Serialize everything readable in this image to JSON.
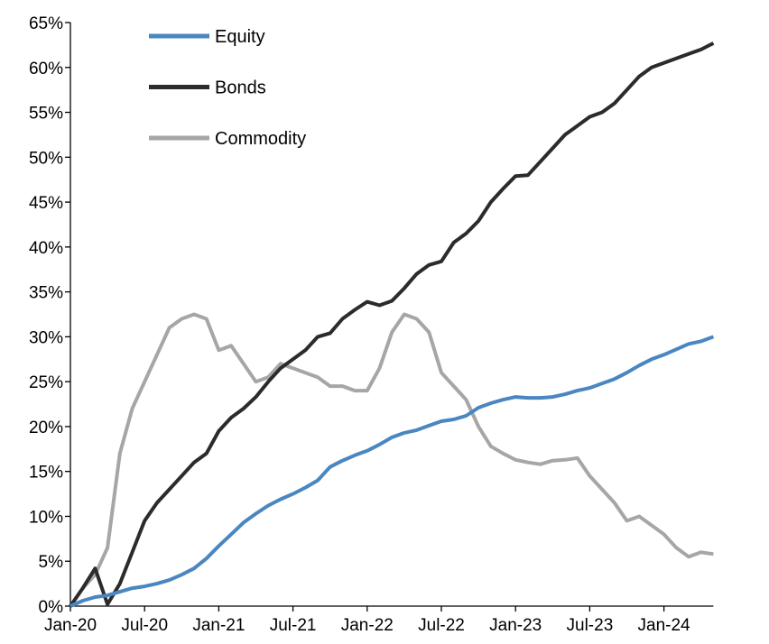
{
  "chart_data": {
    "type": "line",
    "title": "",
    "xlabel": "",
    "ylabel": "",
    "ylim": [
      0,
      65
    ],
    "yticks": [
      "0%",
      "5%",
      "10%",
      "15%",
      "20%",
      "25%",
      "30%",
      "35%",
      "40%",
      "45%",
      "50%",
      "55%",
      "60%",
      "65%"
    ],
    "xticks": [
      "Jan-20",
      "Jul-20",
      "Jan-21",
      "Jul-21",
      "Jan-22",
      "Jul-22",
      "Jan-23",
      "Jul-23",
      "Jan-24"
    ],
    "grid": false,
    "legend_position": "top-left",
    "x": [
      "2020-01",
      "2020-02",
      "2020-03",
      "2020-04",
      "2020-05",
      "2020-06",
      "2020-07",
      "2020-08",
      "2020-09",
      "2020-10",
      "2020-11",
      "2020-12",
      "2021-01",
      "2021-02",
      "2021-03",
      "2021-04",
      "2021-05",
      "2021-06",
      "2021-07",
      "2021-08",
      "2021-09",
      "2021-10",
      "2021-11",
      "2021-12",
      "2022-01",
      "2022-02",
      "2022-03",
      "2022-04",
      "2022-05",
      "2022-06",
      "2022-07",
      "2022-08",
      "2022-09",
      "2022-10",
      "2022-11",
      "2022-12",
      "2023-01",
      "2023-02",
      "2023-03",
      "2023-04",
      "2023-05",
      "2023-06",
      "2023-07",
      "2023-08",
      "2023-09",
      "2023-10",
      "2023-11",
      "2023-12",
      "2024-01",
      "2024-02",
      "2024-03",
      "2024-04",
      "2024-05"
    ],
    "series": [
      {
        "name": "Equity",
        "color": "#4a86c0",
        "values": [
          0,
          0.6,
          1.0,
          1.2,
          1.6,
          2.0,
          2.2,
          2.5,
          2.9,
          3.5,
          4.2,
          5.3,
          6.7,
          8.0,
          9.3,
          10.3,
          11.2,
          11.9,
          12.5,
          13.2,
          14.0,
          15.5,
          16.2,
          16.8,
          17.3,
          18.0,
          18.8,
          19.3,
          19.6,
          20.1,
          20.6,
          20.8,
          21.2,
          22.1,
          22.6,
          23.0,
          23.3,
          23.2,
          23.2,
          23.3,
          23.6,
          24.0,
          24.3,
          24.8,
          25.3,
          26.0,
          26.8,
          27.5,
          28.0,
          28.6,
          29.2,
          29.5,
          30.0
        ]
      },
      {
        "name": "Bonds",
        "color": "#2b2b2b",
        "values": [
          0,
          2.0,
          4.2,
          0.2,
          2.5,
          6.0,
          9.5,
          11.5,
          13.0,
          14.5,
          16.0,
          17.0,
          19.5,
          21.0,
          22.0,
          23.3,
          25.0,
          26.5,
          27.5,
          28.5,
          30.0,
          30.4,
          32.0,
          33.0,
          33.9,
          33.5,
          34.0,
          35.4,
          37.0,
          38.0,
          38.4,
          40.5,
          41.5,
          42.9,
          45.0,
          46.5,
          47.9,
          48.0,
          49.5,
          51.0,
          52.5,
          53.5,
          54.5,
          55.0,
          56.0,
          57.5,
          59.0,
          60.0,
          60.5,
          61.0,
          61.5,
          62.0,
          62.7
        ]
      },
      {
        "name": "Commodity",
        "color": "#a6a6a6",
        "values": [
          0,
          2.0,
          3.5,
          6.5,
          17.0,
          22.0,
          25.0,
          28.0,
          31.0,
          32.0,
          32.5,
          32.0,
          28.5,
          29.0,
          27.0,
          25.0,
          25.5,
          27.0,
          26.5,
          26.0,
          25.5,
          24.5,
          24.5,
          24.0,
          24.0,
          26.5,
          30.5,
          32.5,
          32.0,
          30.5,
          26.0,
          24.5,
          23.0,
          20.0,
          17.8,
          17.0,
          16.3,
          16.0,
          15.8,
          16.2,
          16.3,
          16.5,
          14.5,
          13.0,
          11.5,
          9.5,
          10.0,
          9.0,
          8.0,
          6.5,
          5.5,
          6.0,
          5.8
        ]
      }
    ]
  }
}
